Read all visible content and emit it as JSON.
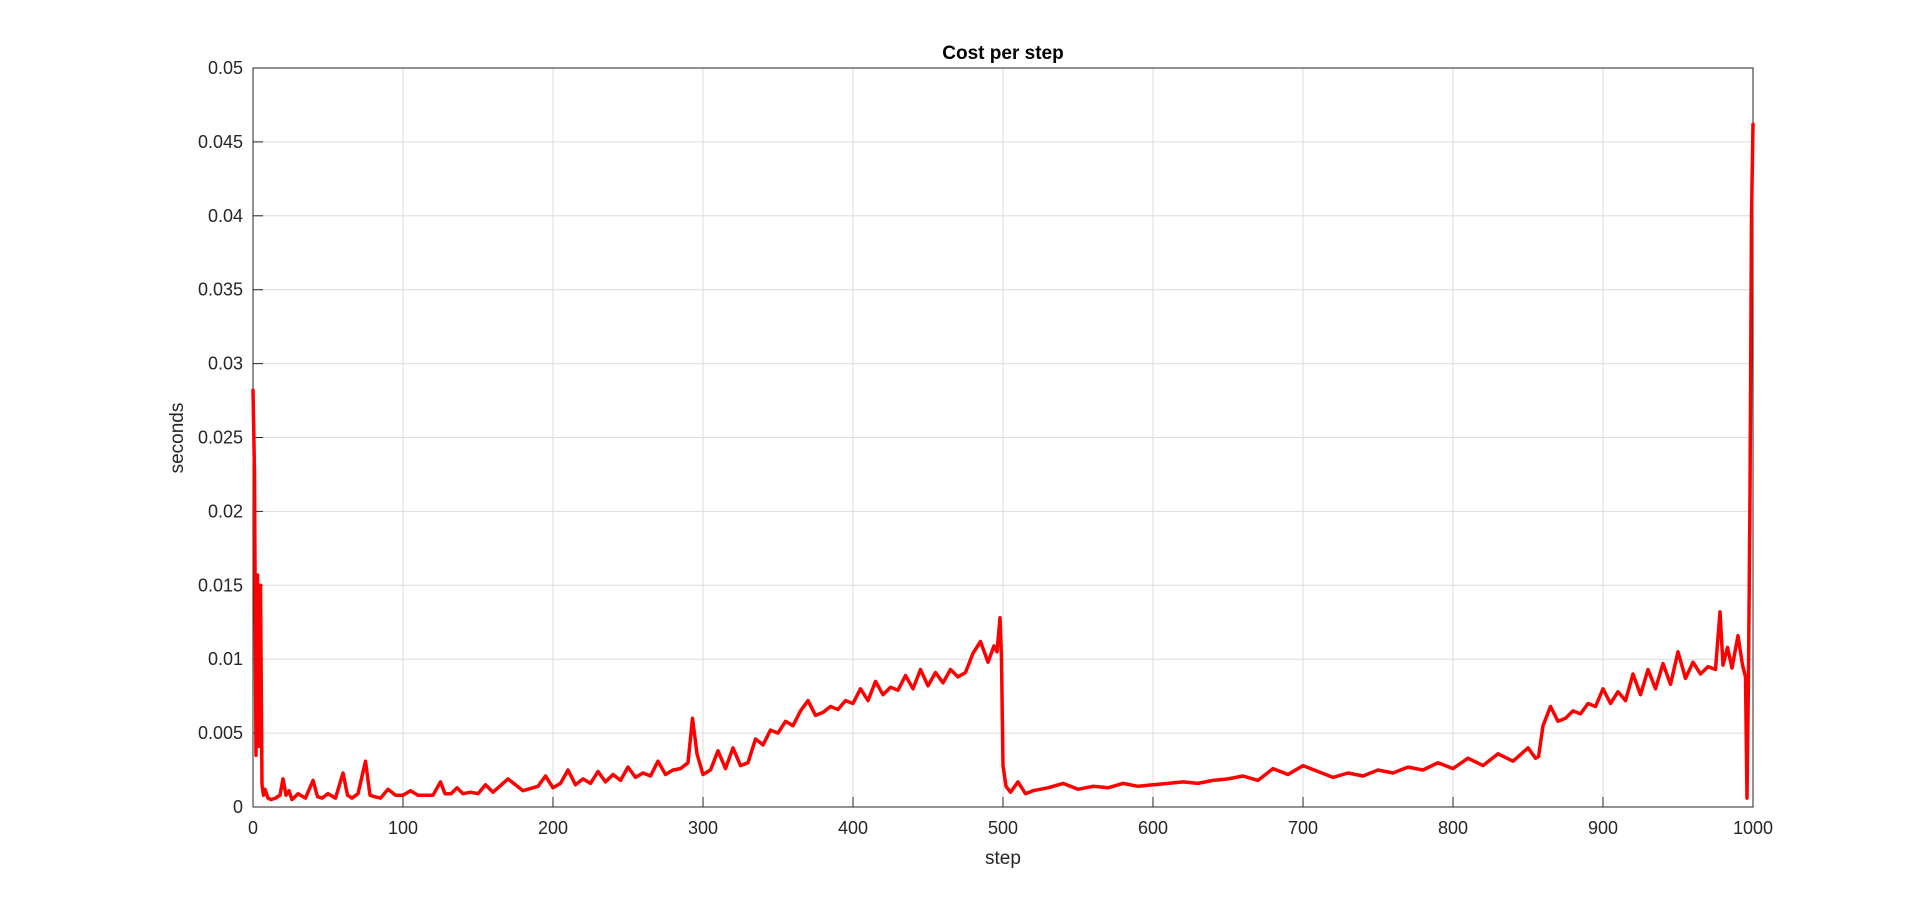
{
  "chart_data": {
    "type": "line",
    "title": "Cost per step",
    "xlabel": "step",
    "ylabel": "seconds",
    "xlim": [
      0,
      1000
    ],
    "ylim": [
      0,
      0.05
    ],
    "xticks": [
      0,
      100,
      200,
      300,
      400,
      500,
      600,
      700,
      800,
      900,
      1000
    ],
    "xtick_labels": [
      "0",
      "100",
      "200",
      "300",
      "400",
      "500",
      "600",
      "700",
      "800",
      "900",
      "1000"
    ],
    "yticks": [
      0,
      0.005,
      0.01,
      0.015,
      0.02,
      0.025,
      0.03,
      0.035,
      0.04,
      0.045,
      0.05
    ],
    "ytick_labels": [
      "0",
      "0.005",
      "0.01",
      "0.015",
      "0.02",
      "0.025",
      "0.03",
      "0.035",
      "0.04",
      "0.045",
      "0.05"
    ],
    "grid": true,
    "series": [
      {
        "color": "#ff0000",
        "x": [
          0,
          1,
          2,
          3,
          4,
          5,
          6,
          7,
          8,
          10,
          12,
          15,
          18,
          20,
          22,
          24,
          26,
          30,
          35,
          40,
          43,
          46,
          50,
          55,
          60,
          63,
          66,
          70,
          75,
          78,
          81,
          85,
          90,
          95,
          100,
          105,
          110,
          115,
          120,
          125,
          128,
          132,
          136,
          140,
          145,
          150,
          155,
          160,
          170,
          180,
          190,
          195,
          200,
          205,
          210,
          215,
          220,
          225,
          230,
          235,
          240,
          245,
          250,
          255,
          260,
          265,
          270,
          275,
          280,
          285,
          290,
          293,
          296,
          300,
          305,
          310,
          315,
          320,
          325,
          330,
          335,
          340,
          345,
          350,
          355,
          360,
          365,
          370,
          375,
          380,
          385,
          390,
          395,
          400,
          405,
          410,
          415,
          420,
          425,
          430,
          435,
          440,
          445,
          450,
          455,
          460,
          465,
          470,
          475,
          480,
          485,
          490,
          494,
          496,
          498,
          499,
          500,
          502,
          505,
          510,
          515,
          520,
          530,
          540,
          550,
          560,
          570,
          580,
          590,
          600,
          610,
          620,
          630,
          640,
          650,
          660,
          670,
          680,
          690,
          700,
          710,
          720,
          730,
          740,
          750,
          760,
          770,
          780,
          790,
          800,
          810,
          820,
          830,
          840,
          850,
          855,
          857,
          860,
          865,
          870,
          875,
          880,
          885,
          890,
          895,
          900,
          905,
          910,
          915,
          920,
          925,
          930,
          935,
          940,
          945,
          950,
          955,
          960,
          965,
          970,
          975,
          978,
          980,
          983,
          986,
          990,
          993,
          995,
          996,
          997,
          998,
          999,
          1000
        ],
        "y": [
          0.0282,
          0.0226,
          0.0035,
          0.0157,
          0.0041,
          0.015,
          0.0015,
          0.0008,
          0.0012,
          0.0006,
          0.0005,
          0.0006,
          0.0008,
          0.0019,
          0.0008,
          0.0011,
          0.0005,
          0.0009,
          0.0006,
          0.0018,
          0.0007,
          0.0006,
          0.0009,
          0.0006,
          0.0023,
          0.0008,
          0.0006,
          0.0009,
          0.0031,
          0.0008,
          0.0007,
          0.0006,
          0.0012,
          0.0008,
          0.0008,
          0.0011,
          0.0008,
          0.0008,
          0.0008,
          0.0017,
          0.0009,
          0.0009,
          0.0013,
          0.0009,
          0.001,
          0.0009,
          0.0015,
          0.001,
          0.0019,
          0.0011,
          0.0014,
          0.0021,
          0.0013,
          0.0016,
          0.0025,
          0.0015,
          0.0019,
          0.0016,
          0.0024,
          0.0017,
          0.0022,
          0.0018,
          0.0027,
          0.002,
          0.0023,
          0.0021,
          0.0031,
          0.0022,
          0.0025,
          0.0026,
          0.003,
          0.006,
          0.0036,
          0.0022,
          0.0025,
          0.0038,
          0.0026,
          0.004,
          0.0028,
          0.003,
          0.0046,
          0.0042,
          0.0052,
          0.005,
          0.0058,
          0.0055,
          0.0065,
          0.0072,
          0.0062,
          0.0064,
          0.0068,
          0.0066,
          0.0072,
          0.007,
          0.008,
          0.0072,
          0.0085,
          0.0076,
          0.0081,
          0.0079,
          0.0089,
          0.008,
          0.0093,
          0.0082,
          0.0091,
          0.0084,
          0.0093,
          0.0088,
          0.0091,
          0.0104,
          0.0112,
          0.0098,
          0.0109,
          0.0105,
          0.0128,
          0.01,
          0.0028,
          0.0014,
          0.001,
          0.0017,
          0.0009,
          0.0011,
          0.0013,
          0.0016,
          0.0012,
          0.0014,
          0.0013,
          0.0016,
          0.0014,
          0.0015,
          0.0016,
          0.0017,
          0.0016,
          0.0018,
          0.0019,
          0.0021,
          0.0018,
          0.0026,
          0.0022,
          0.0028,
          0.0024,
          0.002,
          0.0023,
          0.0021,
          0.0025,
          0.0023,
          0.0027,
          0.0025,
          0.003,
          0.0026,
          0.0033,
          0.0028,
          0.0036,
          0.0031,
          0.004,
          0.0033,
          0.0034,
          0.0055,
          0.0068,
          0.0058,
          0.006,
          0.0065,
          0.0063,
          0.007,
          0.0068,
          0.008,
          0.007,
          0.0078,
          0.0072,
          0.009,
          0.0076,
          0.0093,
          0.008,
          0.0097,
          0.0083,
          0.0105,
          0.0087,
          0.0098,
          0.009,
          0.0095,
          0.0093,
          0.0132,
          0.0096,
          0.0108,
          0.0094,
          0.0116,
          0.0096,
          0.0088,
          0.0006,
          0.009,
          0.021,
          0.04,
          0.0462
        ]
      }
    ]
  }
}
